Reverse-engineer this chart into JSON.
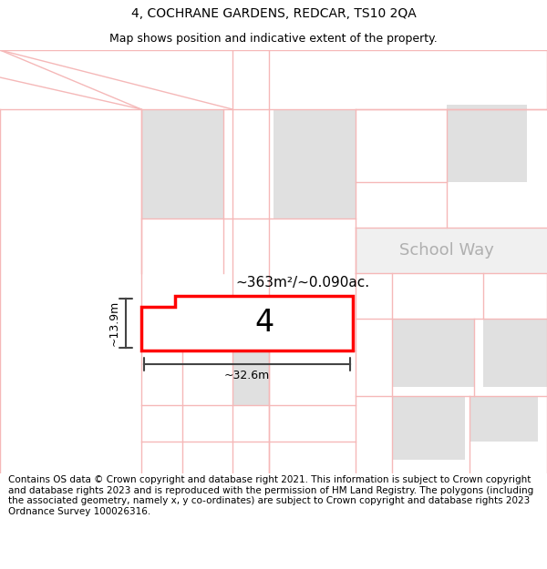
{
  "title": "4, COCHRANE GARDENS, REDCAR, TS10 2QA",
  "subtitle": "Map shows position and indicative extent of the property.",
  "footer": "Contains OS data © Crown copyright and database right 2021. This information is subject to Crown copyright and database rights 2023 and is reproduced with the permission of HM Land Registry. The polygons (including the associated geometry, namely x, y co-ordinates) are subject to Crown copyright and database rights 2023 Ordnance Survey 100026316.",
  "background_color": "#ffffff",
  "plot_color": "#e0e0e0",
  "road_color": "#f5b8b8",
  "highlight_color": "#ff0000",
  "dim_color": "#444444",
  "street_color": "#b0b0b0",
  "label_4": "4",
  "area_label": "~363m²/~0.090ac.",
  "width_label": "~32.6m",
  "height_label": "~13.9m",
  "street_label": "School Way",
  "title_fontsize": 10,
  "subtitle_fontsize": 9,
  "footer_fontsize": 7.5
}
